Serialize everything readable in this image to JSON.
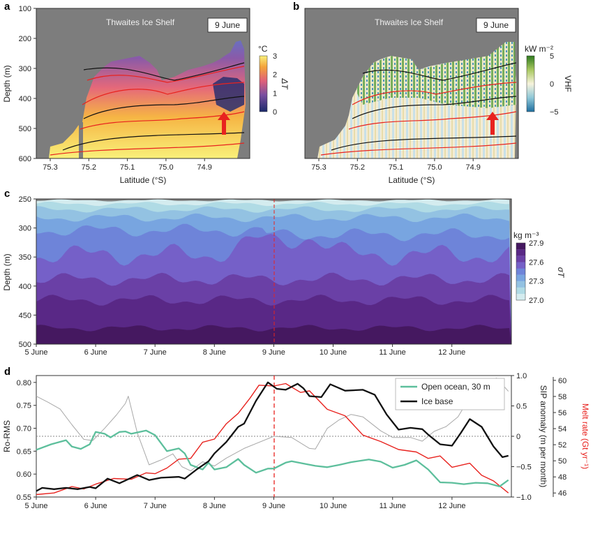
{
  "panel_labels": [
    "a",
    "b",
    "c",
    "d"
  ],
  "chart_data": [
    {
      "panel": "a",
      "type": "heatmap",
      "title": "Thwaites Ice Shelf",
      "date_label": "9 June",
      "xlabel": "Latitude (°S)",
      "ylabel": "Depth (m)",
      "xticks": [
        "75.3",
        "75.2",
        "75.1",
        "75.0",
        "74.9"
      ],
      "yticks": [
        "100",
        "200",
        "300",
        "400",
        "500",
        "600"
      ],
      "ylim": [
        600,
        100
      ],
      "colorbar": {
        "unit": "°C",
        "label": "ΔT",
        "ticks": [
          "0",
          "1",
          "2",
          "3"
        ],
        "range": [
          0,
          3
        ],
        "colors": [
          "#1c2a6b",
          "#7a4fa0",
          "#e0607a",
          "#f4a33a",
          "#f9f07a"
        ]
      },
      "marker": "red-arrow"
    },
    {
      "panel": "b",
      "type": "heatmap",
      "title": "Thwaites Ice Shelf",
      "date_label": "9 June",
      "xlabel": "Latitude (°S)",
      "xticks": [
        "75.3",
        "75.2",
        "75.1",
        "75.0",
        "74.9"
      ],
      "colorbar": {
        "unit": "kW m⁻²",
        "label": "VHF",
        "ticks": [
          "5",
          "0",
          "−5"
        ],
        "range": [
          -5,
          5
        ],
        "colors": [
          "#1f6fa0",
          "#8fc8d8",
          "#f7f3dc",
          "#a8c860",
          "#2f7a1f"
        ]
      },
      "marker": "red-arrow"
    },
    {
      "panel": "c",
      "type": "area",
      "ylabel": "Depth (m)",
      "yticks": [
        "250",
        "300",
        "350",
        "400",
        "450",
        "500"
      ],
      "ylim": [
        500,
        250
      ],
      "xticks": [
        "5 June",
        "6 June",
        "7 June",
        "8 June",
        "9 June",
        "10 June",
        "11 June",
        "12 June"
      ],
      "colorbar": {
        "unit": "kg m⁻³",
        "label": "σT",
        "ticks": [
          "27.9",
          "27.6",
          "27.3",
          "27.0"
        ],
        "range": [
          27.0,
          27.9
        ]
      },
      "levels": [
        27.0,
        27.1,
        27.2,
        27.3,
        27.4,
        27.5,
        27.6,
        27.7,
        27.8
      ],
      "level_colors": [
        "#d4ecef",
        "#b0dbe5",
        "#93c2e2",
        "#78a5e0",
        "#6e84d9",
        "#7560c8",
        "#6a40a6",
        "#592886",
        "#451860"
      ],
      "vline": "9 June"
    },
    {
      "panel": "d",
      "type": "line",
      "xticks": [
        "5 June",
        "6 June",
        "7 June",
        "8 June",
        "9 June",
        "10 June",
        "11 June",
        "12 June"
      ],
      "xlim_days": [
        5,
        13
      ],
      "y_left": {
        "label": "Ro-RMS",
        "ticks": [
          "0.55",
          "0.60",
          "0.65",
          "0.70",
          "0.75",
          "0.80"
        ],
        "range": [
          0.55,
          0.815
        ]
      },
      "y_right1": {
        "label": "SIP anomaly (m per month)",
        "ticks": [
          "1.0",
          "0.5",
          "0",
          "−0.5",
          "−1.0"
        ],
        "range": [
          -1.0,
          1.0
        ]
      },
      "y_right2": {
        "label": "Melt rate (Gt yr⁻¹)",
        "ticks": [
          "46",
          "48",
          "50",
          "52",
          "54",
          "56",
          "58",
          "60"
        ],
        "range": [
          45.5,
          60.6
        ],
        "color": "#e8231f"
      },
      "legend_position": "top-right",
      "vline_day": 9,
      "series": [
        {
          "name": "Open ocean, 30 m",
          "axis": "left",
          "color": "#5dbf9c",
          "x": [
            5,
            5.25,
            5.5,
            5.6,
            5.75,
            5.9,
            6,
            6.15,
            6.25,
            6.4,
            6.5,
            6.6,
            6.85,
            7,
            7.2,
            7.4,
            7.5,
            7.6,
            7.8,
            7.9,
            8,
            8.2,
            8.4,
            8.5,
            8.7,
            8.9,
            9,
            9.2,
            9.3,
            9.5,
            9.7,
            9.9,
            10.1,
            10.3,
            10.6,
            10.8,
            11,
            11.2,
            11.4,
            11.6,
            11.8,
            12,
            12.2,
            12.4,
            12.6,
            12.8,
            12.95
          ],
          "y": [
            0.653,
            0.665,
            0.674,
            0.66,
            0.655,
            0.665,
            0.692,
            0.688,
            0.68,
            0.692,
            0.693,
            0.688,
            0.695,
            0.685,
            0.65,
            0.656,
            0.645,
            0.62,
            0.61,
            0.625,
            0.61,
            0.615,
            0.633,
            0.62,
            0.603,
            0.612,
            0.612,
            0.625,
            0.628,
            0.623,
            0.618,
            0.615,
            0.62,
            0.626,
            0.632,
            0.627,
            0.614,
            0.62,
            0.63,
            0.61,
            0.582,
            0.581,
            0.578,
            0.581,
            0.58,
            0.573,
            0.587
          ]
        },
        {
          "name": "Ice base",
          "axis": "left",
          "color": "#111111",
          "x": [
            5,
            5.1,
            5.3,
            5.5,
            5.7,
            5.9,
            6,
            6.2,
            6.4,
            6.7,
            6.9,
            7.1,
            7.4,
            7.5,
            7.7,
            7.9,
            8,
            8.2,
            8.4,
            8.5,
            8.7,
            8.9,
            9.05,
            9.2,
            9.4,
            9.5,
            9.6,
            9.8,
            9.95,
            10.2,
            10.5,
            10.7,
            10.9,
            11.1,
            11.3,
            11.5,
            11.6,
            11.8,
            12,
            12.15,
            12.3,
            12.5,
            12.7,
            12.85,
            12.95
          ],
          "y": [
            0.563,
            0.57,
            0.567,
            0.57,
            0.567,
            0.572,
            0.569,
            0.59,
            0.58,
            0.598,
            0.587,
            0.592,
            0.594,
            0.59,
            0.61,
            0.628,
            0.645,
            0.67,
            0.703,
            0.71,
            0.76,
            0.8,
            0.786,
            0.784,
            0.797,
            0.787,
            0.77,
            0.768,
            0.796,
            0.782,
            0.784,
            0.773,
            0.73,
            0.697,
            0.701,
            0.698,
            0.686,
            0.665,
            0.662,
            0.69,
            0.72,
            0.703,
            0.66,
            0.637,
            0.64
          ]
        },
        {
          "axis": "right2",
          "color": "#e8231f",
          "x": [
            5,
            5.3,
            5.6,
            5.8,
            6,
            6.3,
            6.6,
            6.85,
            7,
            7.2,
            7.4,
            7.6,
            7.8,
            8,
            8.2,
            8.4,
            8.6,
            8.75,
            9,
            9.2,
            9.45,
            9.6,
            9.9,
            10.2,
            10.5,
            10.8,
            11.1,
            11.4,
            11.6,
            11.8,
            12,
            12.3,
            12.5,
            12.7,
            12.95
          ],
          "y": [
            45.8,
            46,
            46.8,
            46.5,
            47.1,
            47.8,
            47.7,
            48.5,
            48.4,
            49.1,
            50.2,
            50.3,
            52.3,
            52.7,
            54.6,
            55.9,
            57.8,
            59.4,
            59.3,
            59.6,
            58.5,
            58.7,
            56.4,
            55.6,
            53.2,
            52.4,
            51.4,
            51.1,
            50.3,
            50.6,
            49.2,
            49.7,
            48.2,
            47.5,
            46
          ]
        },
        {
          "axis": "right1",
          "color": "#a8a8a8",
          "x": [
            5,
            5.2,
            5.4,
            5.6,
            5.8,
            5.95,
            6.15,
            6.35,
            6.5,
            6.55,
            6.7,
            6.9,
            7.1,
            7.3,
            7.45,
            7.6,
            7.8,
            8,
            8.2,
            8.5,
            8.9,
            9,
            9.3,
            9.6,
            9.7,
            9.9,
            10.1,
            10.3,
            10.5,
            10.8,
            11,
            11.3,
            11.5,
            11.7,
            11.9,
            12.1,
            12.3,
            12.6,
            12.75,
            12.95
          ],
          "y": [
            0.66,
            0.56,
            0.45,
            0.19,
            -0.05,
            -0.07,
            0.13,
            0.35,
            0.54,
            0.66,
            0.06,
            -0.47,
            -0.39,
            -0.29,
            -0.5,
            -0.57,
            -0.42,
            -0.49,
            -0.36,
            -0.2,
            -0.04,
            0,
            -0.02,
            -0.2,
            -0.21,
            0.13,
            0.27,
            0.36,
            0.32,
            0.09,
            -0.02,
            -0.02,
            -0.08,
            0.08,
            0.16,
            0.32,
            0.64,
            0.9,
            0.96,
            0.74
          ]
        }
      ]
    }
  ]
}
